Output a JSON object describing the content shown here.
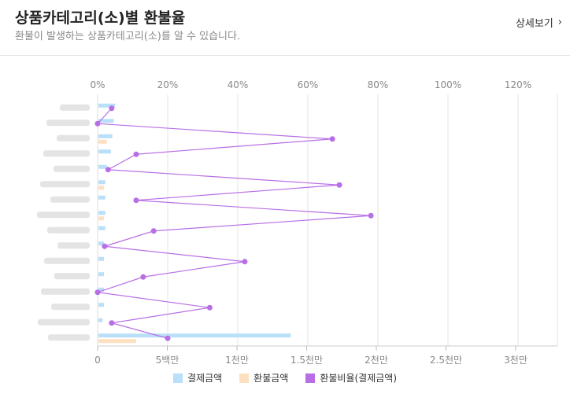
{
  "header": {
    "title": "상품카테고리(소)별 환불율",
    "subtitle": "환불이 발생하는 상품카테고리(소)를 알 수 있습니다.",
    "detail_label": "상세보기"
  },
  "colors": {
    "payment": "#b9e0f8",
    "refund": "#fde0c0",
    "rate": "#b86fe6",
    "grid": "#e6e6e6",
    "axis_text": "#888888"
  },
  "chart_data": {
    "type": "bar",
    "orientation": "horizontal",
    "categories_obscured": true,
    "category_count": 16,
    "top_axis": {
      "ticks": [
        "0%",
        "20%",
        "40%",
        "60%",
        "80%",
        "100%",
        "120%"
      ],
      "tick_values": [
        0,
        20,
        40,
        60,
        80,
        100,
        120
      ],
      "range": [
        0,
        125
      ]
    },
    "bottom_axis": {
      "ticks": [
        "0",
        "5백만",
        "1천만",
        "1.5천만",
        "2천만",
        "2.5천만",
        "3천만"
      ],
      "tick_values": [
        0,
        5000000,
        10000000,
        15000000,
        20000000,
        25000000,
        30000000
      ],
      "range": [
        0,
        33000000
      ]
    },
    "series": [
      {
        "name": "결제금액",
        "kind": "bar",
        "values": [
          1200000,
          1100000,
          1000000,
          900000,
          600000,
          500000,
          500000,
          500000,
          500000,
          400000,
          400000,
          400000,
          400000,
          400000,
          300000,
          13800000
        ]
      },
      {
        "name": "환불금액",
        "kind": "bar",
        "values": [
          0,
          0,
          600000,
          0,
          0,
          400000,
          0,
          400000,
          0,
          0,
          0,
          0,
          0,
          0,
          0,
          2700000
        ]
      },
      {
        "name": "환불비율(결제금액)",
        "kind": "line",
        "values": [
          4,
          0,
          67,
          11,
          3,
          69,
          11,
          78,
          16,
          2,
          42,
          13,
          0,
          32,
          4,
          20
        ]
      }
    ]
  }
}
